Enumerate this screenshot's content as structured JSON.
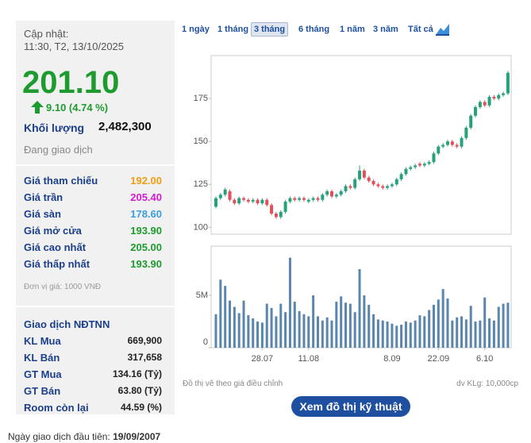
{
  "header": {
    "updated_label": "Cập nhật:",
    "updated_time": "11:30, T2, 13/10/2025",
    "price": "201.10",
    "price_color": "#1e9b2e",
    "change": "9.10 (4.74 %)",
    "volume_label": "Khối lượng",
    "volume": "2,482,300",
    "status": "Đang giao dịch"
  },
  "prices": {
    "rows": [
      {
        "label": "Giá tham chiếu",
        "value": "192.00",
        "color": "#f39c12"
      },
      {
        "label": "Giá trần",
        "value": "205.40",
        "color": "#d21bd2"
      },
      {
        "label": "Giá sàn",
        "value": "178.60",
        "color": "#3a9ee0"
      },
      {
        "label": "Giá mở cửa",
        "value": "193.90",
        "color": "#1e9b2e"
      },
      {
        "label": "Giá cao nhất",
        "value": "205.00",
        "color": "#1e9b2e"
      },
      {
        "label": "Giá thấp nhất",
        "value": "193.90",
        "color": "#1e9b2e"
      }
    ],
    "unit_note": "Đơn vị giá: 1000 VNĐ"
  },
  "foreign": {
    "title": "Giao dịch NĐTNN",
    "rows": [
      {
        "label": "KL Mua",
        "value": "669,900"
      },
      {
        "label": "KL Bán",
        "value": "317,658"
      },
      {
        "label": "GT Mua",
        "value": "134.16 (Tỷ)"
      },
      {
        "label": "GT Bán",
        "value": "63.80 (Tỷ)"
      },
      {
        "label": "Room còn lại",
        "value": "44.59 (%)"
      }
    ]
  },
  "first_trading_day": {
    "label": "Ngày giao dịch đầu tiên:",
    "date": "19/09/2007"
  },
  "tabs": {
    "items": [
      "1 ngày",
      "1 tháng",
      "3 tháng",
      "6 tháng",
      "1 năm",
      "3 năm",
      "Tất cả"
    ],
    "active": 2
  },
  "chart_data": [
    {
      "type": "candlestick",
      "up_color": "#26a17b",
      "down_color": "#e0505b",
      "open": [
        112,
        117,
        119,
        121,
        116,
        114,
        117,
        116,
        115,
        116,
        114,
        116,
        113,
        108,
        106,
        109,
        115,
        117,
        116,
        117,
        115,
        116,
        117,
        116,
        119,
        121,
        118,
        119,
        121,
        124,
        123,
        128,
        133,
        129,
        127,
        125,
        124,
        123,
        124,
        125,
        128,
        131,
        134,
        135,
        137,
        136,
        137,
        138,
        143,
        147,
        148,
        150,
        148,
        147,
        152,
        158,
        165,
        170,
        173,
        171,
        176,
        175,
        177,
        178
      ],
      "high": [
        118,
        120,
        123,
        122,
        117,
        118,
        118,
        117,
        117,
        117,
        117,
        117,
        114,
        109,
        110,
        116,
        118,
        118,
        118,
        118,
        117,
        118,
        118,
        120,
        122,
        122,
        120,
        122,
        125,
        125,
        129,
        136,
        134,
        130,
        128,
        126,
        125,
        125,
        126,
        129,
        132,
        135,
        136,
        137,
        138,
        138,
        139,
        144,
        148,
        149,
        151,
        151,
        149,
        153,
        159,
        166,
        171,
        174,
        174,
        177,
        177,
        178,
        179,
        191
      ],
      "low": [
        111,
        116,
        118,
        115,
        113,
        113,
        115,
        114,
        114,
        113,
        113,
        112,
        107,
        105,
        105,
        108,
        114,
        115,
        115,
        115,
        114,
        115,
        115,
        115,
        118,
        117,
        117,
        118,
        120,
        122,
        122,
        127,
        128,
        126,
        124,
        123,
        122,
        122,
        123,
        124,
        127,
        130,
        133,
        134,
        135,
        135,
        136,
        137,
        142,
        146,
        147,
        147,
        146,
        146,
        151,
        157,
        164,
        169,
        170,
        170,
        174,
        174,
        176,
        177
      ],
      "close": [
        117,
        119,
        122,
        116,
        114,
        117,
        116,
        115,
        116,
        114,
        116,
        113,
        108,
        106,
        109,
        115,
        117,
        116,
        117,
        116,
        116,
        117,
        116,
        119,
        121,
        118,
        119,
        121,
        124,
        123,
        128,
        133,
        129,
        127,
        125,
        124,
        123,
        124,
        125,
        128,
        131,
        134,
        135,
        136,
        136,
        137,
        138,
        143,
        147,
        148,
        150,
        148,
        147,
        152,
        158,
        165,
        170,
        173,
        171,
        176,
        175,
        177,
        178,
        190
      ],
      "ylim": [
        96,
        200
      ],
      "yticks": [
        100,
        125,
        150,
        175
      ]
    },
    {
      "type": "bar",
      "color": "#5a86ad",
      "categories": [
        null,
        null,
        null,
        null,
        null,
        null,
        null,
        null,
        null,
        null,
        "28.07",
        null,
        null,
        null,
        null,
        null,
        null,
        null,
        null,
        null,
        "11.08",
        null,
        null,
        null,
        null,
        null,
        null,
        null,
        null,
        null,
        null,
        null,
        null,
        null,
        null,
        null,
        null,
        null,
        "8.09",
        null,
        null,
        null,
        null,
        null,
        null,
        null,
        null,
        null,
        "22.09",
        null,
        null,
        null,
        null,
        null,
        null,
        null,
        null,
        null,
        "6.10",
        null,
        null,
        null,
        null,
        null
      ],
      "values": [
        3200000,
        6500000,
        5900000,
        4500000,
        3900000,
        3300000,
        4500000,
        3100000,
        2800000,
        2500000,
        2400000,
        4200000,
        3800000,
        3000000,
        4200000,
        3400000,
        8600000,
        4400000,
        3500000,
        3200000,
        3000000,
        5000000,
        3000000,
        2600000,
        2900000,
        2600000,
        4400000,
        4900000,
        4300000,
        4200000,
        3400000,
        7500000,
        5000000,
        4100000,
        3200000,
        2700000,
        2600000,
        2500000,
        2300000,
        2100000,
        2200000,
        2500000,
        2400000,
        2600000,
        3100000,
        3000000,
        3600000,
        4100000,
        4600000,
        5600000,
        4700000,
        2600000,
        2900000,
        3000000,
        2700000,
        4000000,
        2500000,
        2600000,
        4800000,
        2800000,
        2600000,
        3900000,
        4200000,
        4300000
      ],
      "ylim": [
        0,
        9700000
      ],
      "yticks": [
        0,
        {
          "value": 5000000,
          "label": "5M"
        }
      ]
    }
  ],
  "notes": {
    "left": "Đồ thị vẽ theo giá điều chỉnh",
    "right": "dv KLg: 10,000cp"
  },
  "button": "Xem đồ thị kỹ thuật"
}
